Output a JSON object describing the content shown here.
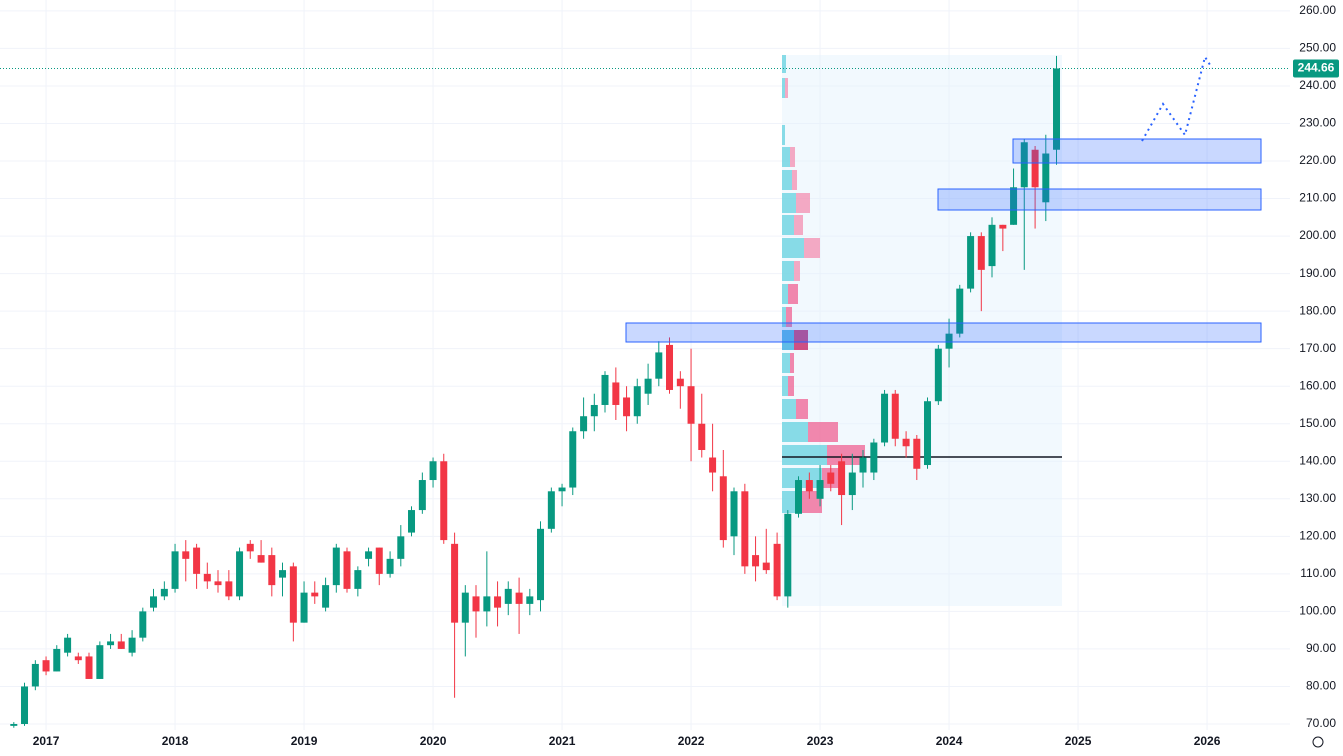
{
  "chart_data": {
    "type": "candlestick",
    "up_color": "#089981",
    "down_color": "#f23645",
    "x": [
      2016.75,
      2016.833,
      2016.917,
      2017,
      2017.083,
      2017.167,
      2017.25,
      2017.333,
      2017.417,
      2017.5,
      2017.583,
      2017.667,
      2017.75,
      2017.833,
      2017.917,
      2018,
      2018.083,
      2018.167,
      2018.25,
      2018.333,
      2018.417,
      2018.5,
      2018.583,
      2018.667,
      2018.75,
      2018.833,
      2018.917,
      2019,
      2019.083,
      2019.167,
      2019.25,
      2019.333,
      2019.417,
      2019.5,
      2019.583,
      2019.667,
      2019.75,
      2019.833,
      2019.917,
      2020,
      2020.083,
      2020.167,
      2020.25,
      2020.333,
      2020.417,
      2020.5,
      2020.583,
      2020.667,
      2020.75,
      2020.833,
      2020.917,
      2021,
      2021.083,
      2021.167,
      2021.25,
      2021.333,
      2021.417,
      2021.5,
      2021.583,
      2021.667,
      2021.75,
      2021.833,
      2021.917,
      2022,
      2022.083,
      2022.167,
      2022.25,
      2022.333,
      2022.417,
      2022.5,
      2022.583,
      2022.667,
      2022.75,
      2022.833,
      2022.917,
      2023,
      2023.083,
      2023.167,
      2023.25,
      2023.333,
      2023.417,
      2023.5,
      2023.583,
      2023.667,
      2023.75,
      2023.833,
      2023.917,
      2024,
      2024.083,
      2024.167,
      2024.25,
      2024.333,
      2024.417,
      2024.5,
      2024.583,
      2024.667,
      2024.75,
      2024.833
    ],
    "open": [
      69.5,
      70,
      80,
      87,
      84,
      89,
      88,
      88,
      82,
      91,
      92,
      89,
      93,
      101,
      104,
      106,
      116,
      117,
      110,
      108,
      108,
      104,
      118,
      115,
      115,
      109,
      112,
      97,
      105,
      101,
      107,
      116,
      106,
      114,
      117,
      110,
      114,
      121,
      127,
      135,
      140,
      118,
      97,
      104,
      100,
      104,
      102,
      105,
      102,
      103,
      122,
      132,
      133,
      148,
      152,
      155,
      161,
      157,
      152,
      158,
      162,
      171,
      162,
      160,
      150,
      141,
      136,
      120,
      132,
      115,
      113,
      118,
      104,
      126,
      135,
      130,
      137,
      140,
      131,
      137,
      137,
      145,
      158,
      146,
      146,
      139,
      156,
      170,
      174,
      186,
      200,
      192,
      203,
      203,
      213,
      223,
      209,
      223
    ],
    "high": [
      70.5,
      81,
      87,
      88,
      91,
      94,
      89,
      89,
      92,
      94,
      94,
      95,
      101,
      106,
      108,
      118,
      119,
      118,
      113,
      111,
      111,
      117,
      119,
      119,
      117,
      113,
      113,
      108,
      108,
      109,
      118,
      117,
      112,
      117,
      117,
      116,
      123,
      128,
      137,
      141,
      142,
      121,
      107,
      107,
      116,
      108,
      108,
      109,
      106,
      124,
      133,
      134,
      149,
      157,
      158,
      164,
      165,
      160,
      162,
      166,
      172,
      173,
      164,
      170,
      158,
      150,
      143,
      133,
      134,
      120,
      122,
      121,
      127,
      136,
      137,
      139,
      139,
      142,
      142,
      143,
      146,
      159,
      159,
      148,
      147,
      157,
      171,
      178,
      187,
      201,
      201,
      205,
      203,
      218,
      226,
      224,
      227,
      248
    ],
    "low": [
      69,
      69.5,
      79,
      83,
      84,
      88,
      86,
      82,
      82,
      90,
      90,
      88,
      92,
      100,
      103,
      105,
      108,
      106,
      106,
      105,
      103,
      103,
      114,
      113,
      104,
      104,
      92,
      97,
      102,
      100,
      105,
      105,
      104,
      112,
      107,
      109,
      112,
      120,
      126,
      133,
      118,
      77,
      88,
      93,
      96,
      96,
      99,
      94,
      99,
      100,
      121,
      128,
      131,
      146,
      148,
      153,
      151,
      148,
      150,
      155,
      160,
      158,
      154,
      140,
      141,
      132,
      117,
      115,
      110,
      108,
      110,
      103,
      101,
      125,
      130,
      128,
      132,
      123,
      127,
      133,
      135,
      144,
      144,
      141,
      135,
      138,
      155,
      165,
      173,
      185,
      180,
      189,
      196,
      203,
      191,
      202,
      204,
      219
    ],
    "close": [
      70,
      80,
      86,
      84,
      90,
      93,
      87,
      82,
      91,
      92,
      90,
      93,
      100,
      104,
      106,
      116,
      114,
      110,
      108,
      107,
      104,
      116,
      116,
      113,
      107,
      111,
      97,
      105,
      104,
      107,
      117,
      106,
      111,
      116,
      110,
      114,
      120,
      127,
      135,
      140,
      119,
      97,
      105,
      100,
      104,
      101,
      106,
      102,
      104,
      122,
      132,
      133,
      148,
      152,
      155,
      163,
      155,
      152,
      160,
      162,
      169,
      159,
      160,
      150,
      143,
      137,
      119,
      132,
      112,
      112,
      111,
      104,
      126,
      135,
      132,
      135,
      134,
      131,
      137,
      141,
      145,
      158,
      146,
      144,
      138,
      156,
      170,
      174,
      186,
      200,
      191,
      203,
      202,
      213,
      225,
      213,
      222,
      244.66
    ],
    "xlim": [
      2016.643,
      2026.643
    ],
    "xticks": [
      2017,
      2018,
      2019,
      2020,
      2021,
      2022,
      2023,
      2024,
      2025,
      2026
    ],
    "ylim": [
      68.4,
      262.9
    ],
    "yticks": [
      {
        "value": 70,
        "label": "70.00"
      },
      {
        "value": 80,
        "label": "80.00"
      },
      {
        "value": 90,
        "label": "90.00"
      },
      {
        "value": 100,
        "label": "100.00"
      },
      {
        "value": 110,
        "label": "110.00"
      },
      {
        "value": 120,
        "label": "120.00"
      },
      {
        "value": 130,
        "label": "130.00"
      },
      {
        "value": 140,
        "label": "140.00"
      },
      {
        "value": 150,
        "label": "150.00"
      },
      {
        "value": 160,
        "label": "160.00"
      },
      {
        "value": 170,
        "label": "170.00"
      },
      {
        "value": 180,
        "label": "180.00"
      },
      {
        "value": 190,
        "label": "190.00"
      },
      {
        "value": 200,
        "label": "200.00"
      },
      {
        "value": 210,
        "label": "210.00"
      },
      {
        "value": 220,
        "label": "220.00"
      },
      {
        "value": 230,
        "label": "230.00"
      },
      {
        "value": 240,
        "label": "240.00"
      },
      {
        "value": 250,
        "label": "250.00"
      },
      {
        "value": 260,
        "label": "260.00"
      }
    ],
    "grid": true
  }
}
